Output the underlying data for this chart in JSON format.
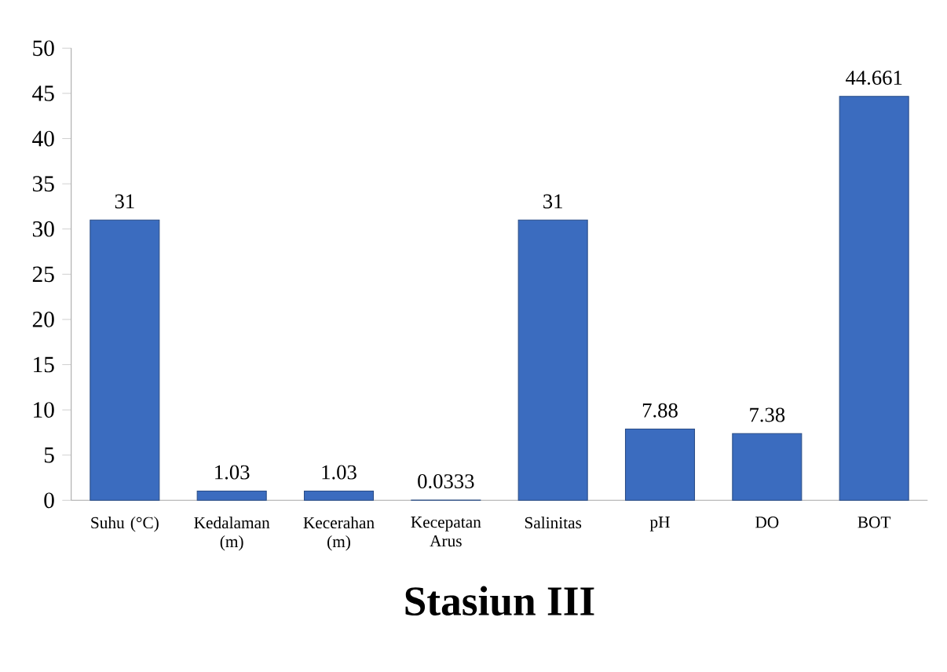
{
  "chart_data": {
    "type": "bar",
    "title": "Stasiun III",
    "categories": [
      "Suhu (°C)",
      "Kedalaman (m)",
      "Kecerahan (m)",
      "Kecepatan Arus",
      "Salinitas",
      "pH",
      "DO",
      "BOT"
    ],
    "values": [
      31,
      1.03,
      1.03,
      0.0333,
      31,
      7.88,
      7.38,
      44.661
    ],
    "color": "#3b6cbf",
    "data_labels": true,
    "grid": false,
    "ylim": [
      0,
      50
    ],
    "yticks": [
      0,
      5,
      10,
      15,
      20,
      25,
      30,
      35,
      40,
      45,
      50
    ]
  }
}
